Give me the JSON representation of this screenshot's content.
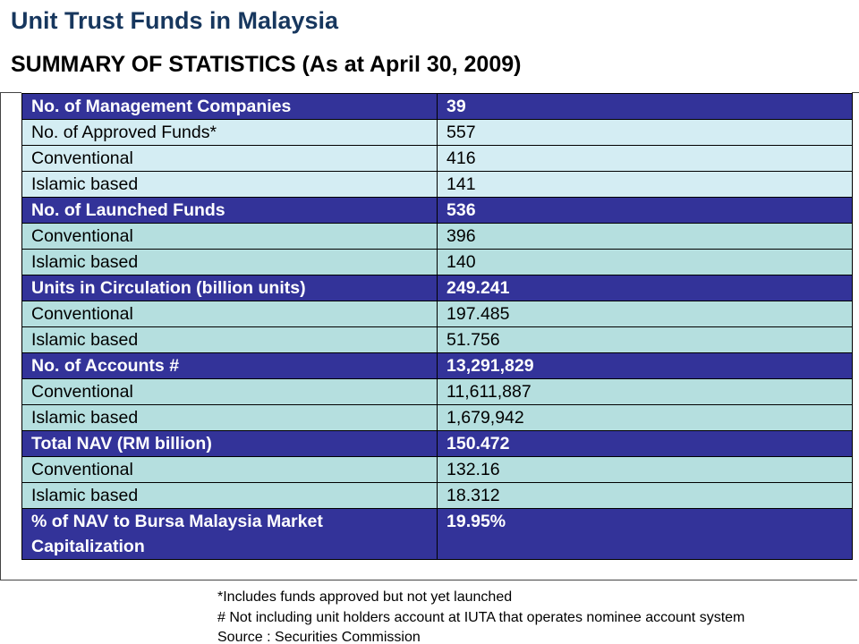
{
  "header": {
    "title": "Unit Trust Funds in Malaysia",
    "subtitle": "SUMMARY OF STATISTICS (As at April 30, 2009)"
  },
  "table": {
    "rows": [
      {
        "label": "No. of Management Companies",
        "value": "39",
        "bold": true,
        "fill": "#333399"
      },
      {
        "label": "No. of Approved Funds*",
        "value": "557",
        "bold": false,
        "fill": "#d4edf3"
      },
      {
        "label": "Conventional",
        "value": "416",
        "bold": false,
        "fill": "#d4edf3"
      },
      {
        "label": "Islamic based",
        "value": "141",
        "bold": false,
        "fill": "#d4edf3"
      },
      {
        "label": "No. of Launched Funds",
        "value": "536",
        "bold": true,
        "fill": "#333399"
      },
      {
        "label": "Conventional",
        "value": "396",
        "bold": false,
        "fill": "#b5dfdf"
      },
      {
        "label": "Islamic based",
        "value": "140",
        "bold": false,
        "fill": "#b5dfdf"
      },
      {
        "label": "Units in Circulation (billion units)",
        "value": "249.241",
        "bold": true,
        "fill": "#333399"
      },
      {
        "label": "Conventional",
        "value": "197.485",
        "bold": false,
        "fill": "#b5dfdf"
      },
      {
        "label": "Islamic based",
        "value": "51.756",
        "bold": false,
        "fill": "#b5dfdf"
      },
      {
        "label": "No. of Accounts #",
        "value": "13,291,829",
        "bold": true,
        "fill": "#333399"
      },
      {
        "label": "Conventional",
        "value": "11,611,887",
        "bold": false,
        "fill": "#b5dfdf"
      },
      {
        "label": "Islamic based",
        "value": "1,679,942",
        "bold": false,
        "fill": "#b5dfdf"
      },
      {
        "label": "Total NAV (RM billion)",
        "value": "150.472",
        "bold": true,
        "fill": "#333399"
      },
      {
        "label": "Conventional",
        "value": "132.16",
        "bold": false,
        "fill": "#b5dfdf"
      },
      {
        "label": "Islamic based",
        "value": "18.312",
        "bold": false,
        "fill": "#b5dfdf"
      },
      {
        "label": "% of NAV to Bursa Malaysia Market Capitalization",
        "value": "19.95%",
        "bold": true,
        "fill": "#333399"
      }
    ]
  },
  "footnotes": [
    "*Includes funds approved but not yet launched",
    "# Not including unit holders account at IUTA that operates nominee account system",
    "Source : Securities Commission"
  ]
}
